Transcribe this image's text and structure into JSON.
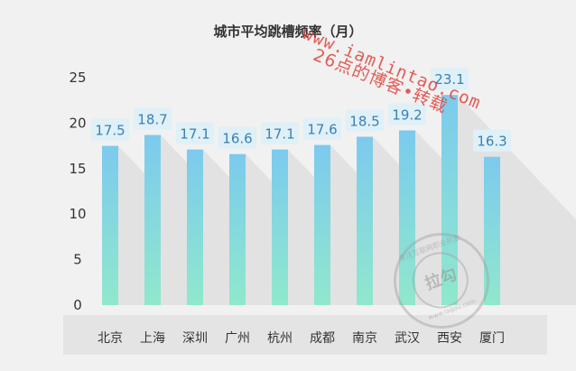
{
  "chart_data": {
    "type": "bar",
    "title": "城市平均跳槽频率（月）",
    "categories": [
      "北京",
      "上海",
      "深圳",
      "广州",
      "杭州",
      "成都",
      "南京",
      "武汉",
      "西安",
      "厦门"
    ],
    "values": [
      17.5,
      18.7,
      17.1,
      16.6,
      17.1,
      17.6,
      18.5,
      19.2,
      23.1,
      16.3
    ],
    "data_labels": [
      "17.5",
      "18.7",
      "17.1",
      "16.6",
      "17.1",
      "17.6",
      "18.5",
      "19.2",
      "23.1",
      "16.3"
    ],
    "ylim": [
      0,
      25
    ],
    "yticks": [
      0,
      5,
      10,
      15,
      20,
      25
    ],
    "ytick_labels": [
      "0",
      "5",
      "10",
      "15",
      "20",
      "25"
    ],
    "xlabel": "",
    "ylabel": "",
    "grid": false,
    "colors": {
      "bar_top": "#7ccaee",
      "bar_bottom": "#90e8cc",
      "label_bg": "#dff0f7",
      "label_text": "#3a7fb6",
      "shadow": "#e2e2e2",
      "axis_band": "#e4e4e4",
      "tick_text": "#333333"
    }
  },
  "watermark": {
    "line1": "www.iamlintao.com",
    "line2": "26点的博客•转载"
  },
  "seal": {
    "center": "拉勾",
    "ring_top": "专注互联网职业机会",
    "ring_bottom": "www.lagou.com"
  }
}
